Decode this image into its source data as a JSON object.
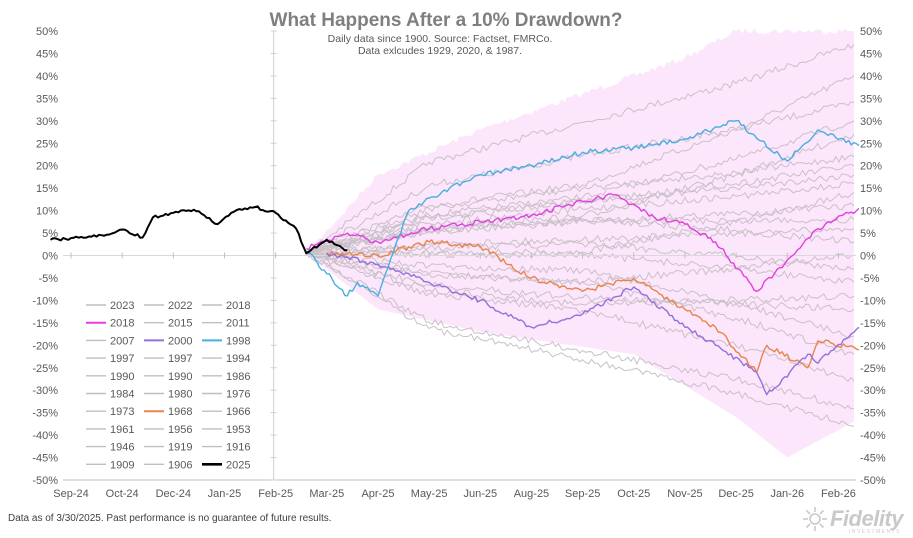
{
  "chart_data": {
    "type": "line",
    "title": "What Happens After a 10% Drawdown?",
    "subtitle_lines": [
      "Daily data since 1900.  Source: Factset, FMRCo.",
      "Data exlcudes 1929, 2020, & 1987."
    ],
    "x_ticks": [
      "Sep-24",
      "Oct-24",
      "Dec-24",
      "Jan-25",
      "Feb-25",
      "Mar-25",
      "Apr-25",
      "May-25",
      "Jun-25",
      "Aug-25",
      "Sep-25",
      "Oct-25",
      "Nov-25",
      "Dec-25",
      "Jan-26",
      "Feb-26"
    ],
    "ylim": [
      -50,
      50
    ],
    "y_ticks": [
      "50%",
      "45%",
      "40%",
      "35%",
      "30%",
      "25%",
      "20%",
      "15%",
      "10%",
      "5%",
      "0%",
      "-5%",
      "-10%",
      "-15%",
      "-20%",
      "-25%",
      "-30%",
      "-35%",
      "-40%",
      "-45%",
      "-50%"
    ],
    "grid": false,
    "legend_position": "bottom-left",
    "shaded_range_note": "pink band spans min-max of historical paths after the drawdown",
    "series_colors": {
      "highlight_2018": "#e040e0",
      "highlight_2000": "#9370db",
      "highlight_1998": "#4aaee0",
      "highlight_1968": "#e8844a",
      "current_2025": "#000000",
      "other": "#c9c0c8",
      "band": "#fce6fb"
    },
    "legend_entries": [
      {
        "label": "2023",
        "style": "gray"
      },
      {
        "label": "2022",
        "style": "gray"
      },
      {
        "label": "2018",
        "style": "gray"
      },
      {
        "label": "2018",
        "style": "magenta"
      },
      {
        "label": "2015",
        "style": "gray"
      },
      {
        "label": "2011",
        "style": "gray"
      },
      {
        "label": "2007",
        "style": "gray"
      },
      {
        "label": "2000",
        "style": "purple"
      },
      {
        "label": "1998",
        "style": "blue"
      },
      {
        "label": "1997",
        "style": "gray"
      },
      {
        "label": "1997",
        "style": "gray"
      },
      {
        "label": "1994",
        "style": "gray"
      },
      {
        "label": "1990",
        "style": "gray"
      },
      {
        "label": "1990",
        "style": "gray"
      },
      {
        "label": "1986",
        "style": "gray"
      },
      {
        "label": "1984",
        "style": "gray"
      },
      {
        "label": "1980",
        "style": "gray"
      },
      {
        "label": "1976",
        "style": "gray"
      },
      {
        "label": "1973",
        "style": "gray"
      },
      {
        "label": "1968",
        "style": "orange"
      },
      {
        "label": "1966",
        "style": "gray"
      },
      {
        "label": "1961",
        "style": "gray"
      },
      {
        "label": "1956",
        "style": "gray"
      },
      {
        "label": "1953",
        "style": "gray"
      },
      {
        "label": "1946",
        "style": "gray"
      },
      {
        "label": "1919",
        "style": "gray"
      },
      {
        "label": "1916",
        "style": "gray"
      },
      {
        "label": "1909",
        "style": "gray"
      },
      {
        "label": "1906",
        "style": "gray"
      },
      {
        "label": "2025",
        "style": "black"
      }
    ],
    "series_2025": [
      [
        "Sep-24",
        3.5
      ],
      [
        "Sep-24",
        4.2
      ],
      [
        "Oct-24",
        4.5
      ],
      [
        "Oct-24",
        5.8
      ],
      [
        "Oct-24",
        4.0
      ],
      [
        "Dec-24",
        8.5
      ],
      [
        "Dec-24",
        9.5
      ],
      [
        "Dec-24",
        10.2
      ],
      [
        "Jan-25",
        9.0
      ],
      [
        "Jan-25",
        7.0
      ],
      [
        "Jan-25",
        9.5
      ],
      [
        "Jan-25",
        10.5
      ],
      [
        "Feb-25",
        10.8
      ],
      [
        "Feb-25",
        9.5
      ],
      [
        "Feb-25",
        6.0
      ],
      [
        "Mar-25",
        0.5
      ],
      [
        "Mar-25",
        3.5
      ],
      [
        "Mar-25",
        1.2
      ]
    ],
    "series_1998": [
      [
        "Mar-25",
        1.0
      ],
      [
        "Mar-25",
        -9.0
      ],
      [
        "Apr-25",
        -6.0
      ],
      [
        "Apr-25",
        -9.0
      ],
      [
        "Apr-25",
        4.0
      ],
      [
        "May-25",
        10.0
      ],
      [
        "May-25",
        15.0
      ],
      [
        "Jun-25",
        18.0
      ],
      [
        "Aug-25",
        20.0
      ],
      [
        "Sep-25",
        23.0
      ],
      [
        "Oct-25",
        24.0
      ],
      [
        "Nov-25",
        26.0
      ],
      [
        "Dec-25",
        30.0
      ],
      [
        "Jan-26",
        21.0
      ],
      [
        "Feb-26",
        28.0
      ],
      [
        "Feb-26",
        24.5
      ]
    ],
    "series_2018": [
      [
        "Mar-25",
        1.5
      ],
      [
        "Mar-25",
        5.0
      ],
      [
        "Apr-25",
        3.0
      ],
      [
        "May-25",
        6.0
      ],
      [
        "Jun-25",
        7.5
      ],
      [
        "Aug-25",
        9.0
      ],
      [
        "Sep-25",
        12.0
      ],
      [
        "Oct-25",
        13.5
      ],
      [
        "Oct-25",
        8.5
      ],
      [
        "Nov-25",
        7.0
      ],
      [
        "Dec-25",
        3.0
      ],
      [
        "Dec-25",
        -8.0
      ],
      [
        "Jan-26",
        -1.0
      ],
      [
        "Feb-26",
        6.0
      ],
      [
        "Feb-26",
        10.5
      ]
    ],
    "series_1968": [
      [
        "Mar-25",
        0.5
      ],
      [
        "Apr-25",
        0.0
      ],
      [
        "May-25",
        3.0
      ],
      [
        "Jun-25",
        2.0
      ],
      [
        "Aug-25",
        -5.0
      ],
      [
        "Sep-25",
        -8.0
      ],
      [
        "Oct-25",
        -5.0
      ],
      [
        "Nov-25",
        -12.0
      ],
      [
        "Dec-25",
        -16.0
      ],
      [
        "Dec-25",
        -26.0
      ],
      [
        "Jan-26",
        -20.0
      ],
      [
        "Jan-26",
        -25.0
      ],
      [
        "Feb-26",
        -19.0
      ],
      [
        "Feb-26",
        -21.0
      ]
    ],
    "series_2000": [
      [
        "Mar-25",
        0.5
      ],
      [
        "Apr-25",
        -2.0
      ],
      [
        "May-25",
        -6.0
      ],
      [
        "Jun-25",
        -10.0
      ],
      [
        "Aug-25",
        -16.0
      ],
      [
        "Sep-25",
        -13.0
      ],
      [
        "Oct-25",
        -7.0
      ],
      [
        "Nov-25",
        -16.0
      ],
      [
        "Dec-25",
        -20.0
      ],
      [
        "Dec-25",
        -26.0
      ],
      [
        "Jan-26",
        -31.0
      ],
      [
        "Jan-26",
        -22.0
      ],
      [
        "Feb-26",
        -24.0
      ],
      [
        "Feb-26",
        -16.0
      ]
    ]
  },
  "footnote": "Data as of 3/30/2025. Past performance is no guarantee of future results.",
  "logo": {
    "name": "Fidelity",
    "tagline": "INVESTMENTS"
  }
}
